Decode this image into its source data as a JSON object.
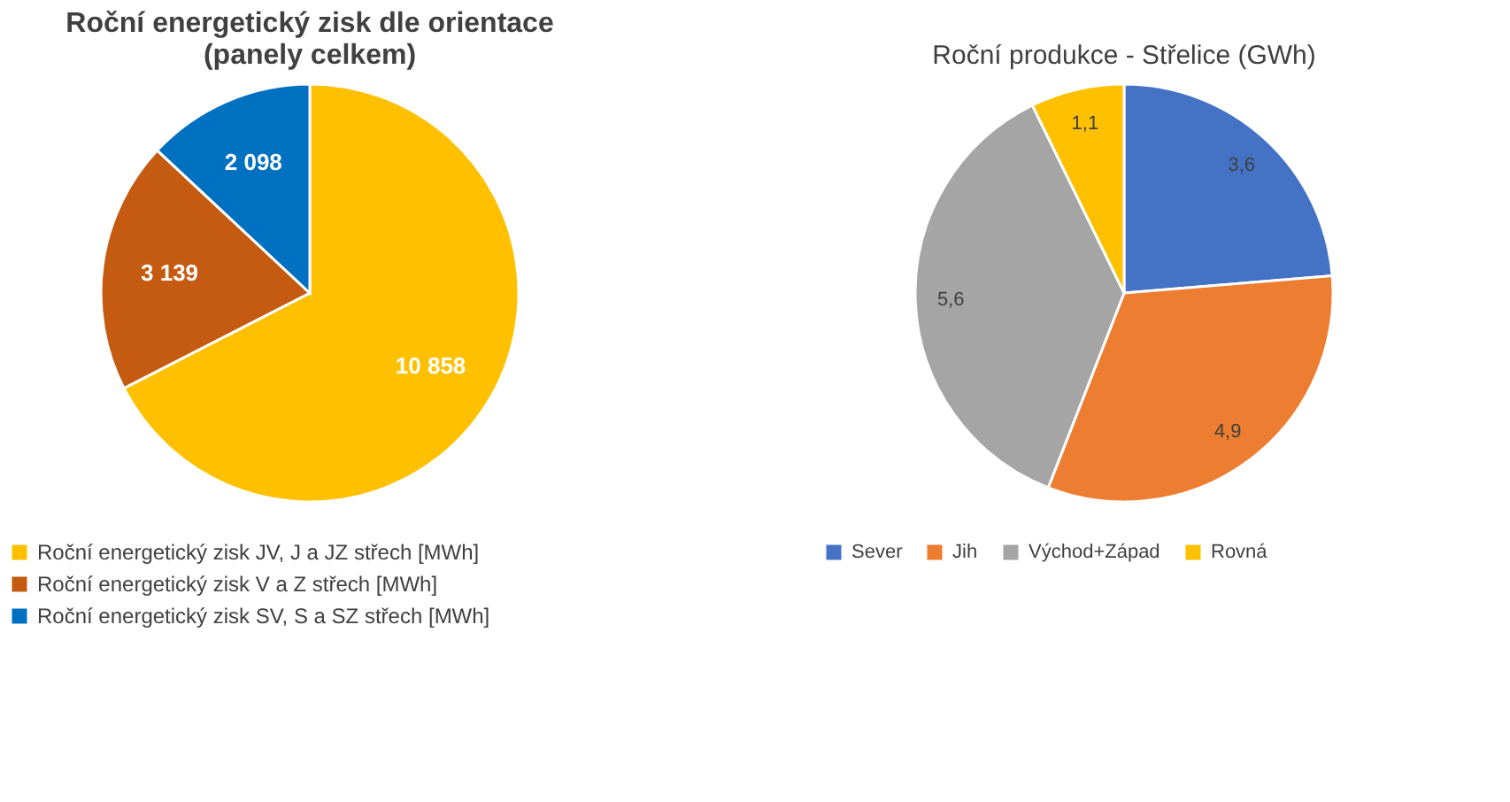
{
  "chart_data": [
    {
      "type": "pie",
      "title": "Roční energetický zisk dle orientace\n(panely celkem)",
      "categories": [
        "Roční energetický zisk JV, J a JZ střech [MWh]",
        "Roční energetický zisk V a Z střech [MWh]",
        "Roční energetický zisk SV, S a SZ střech [MWh]"
      ],
      "values": [
        10858,
        3139,
        2098
      ],
      "value_labels": [
        "10 858",
        "3 139",
        "2 098"
      ],
      "colors": [
        "#ffc000",
        "#c55a11",
        "#0070c0"
      ],
      "legend": "bottom"
    },
    {
      "type": "pie",
      "title": "Roční produkce - Střelice (GWh)",
      "categories": [
        "Sever",
        "Jih",
        "Východ+Západ",
        "Rovná"
      ],
      "values": [
        3.6,
        4.9,
        5.6,
        1.1
      ],
      "value_labels": [
        "3,6",
        "4,9",
        "5,6",
        "1,1"
      ],
      "colors": [
        "#4472c4",
        "#ed7d31",
        "#a5a5a5",
        "#ffc000"
      ],
      "legend": "bottom"
    }
  ]
}
